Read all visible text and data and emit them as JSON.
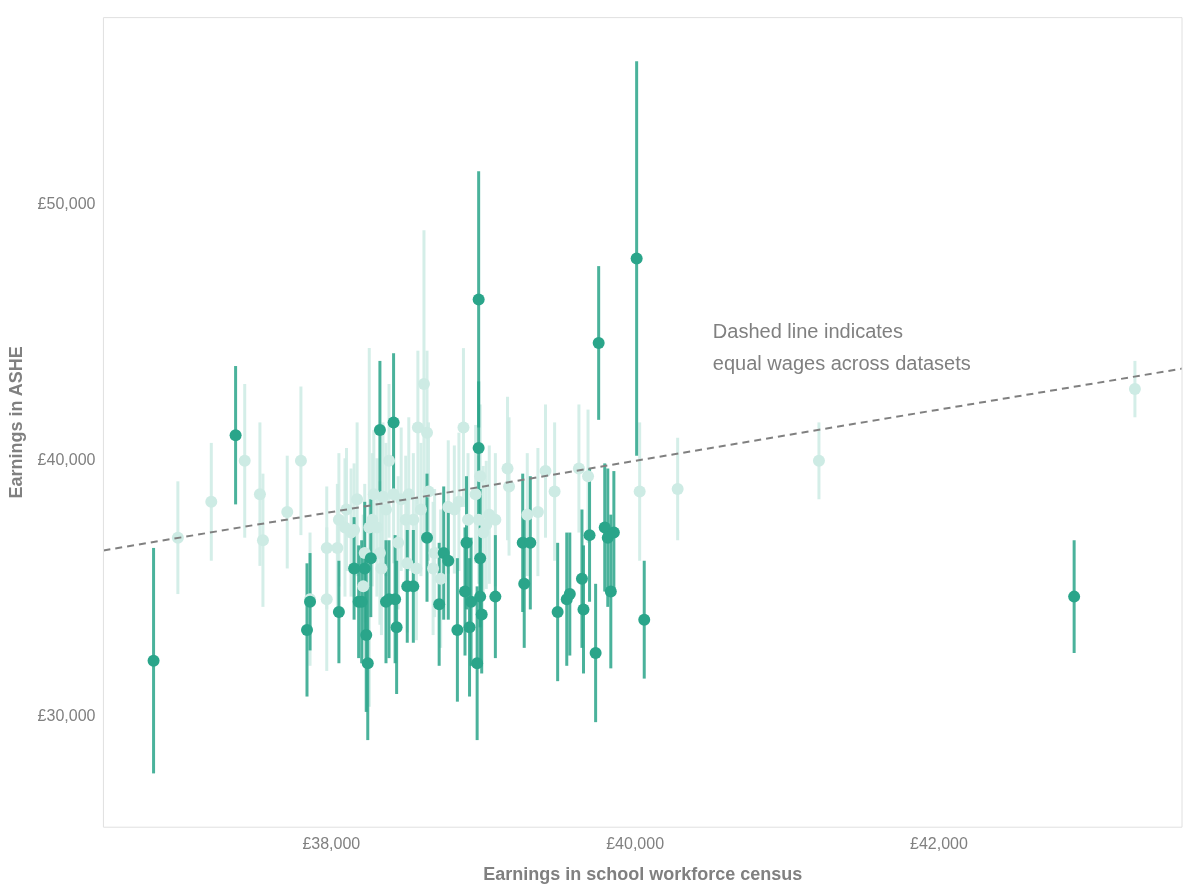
{
  "chart_data": {
    "type": "scatter",
    "xlabel": "Earnings in school workforce census",
    "ylabel": "Earnings in ASHE",
    "xlim": [
      36500,
      43600
    ],
    "ylim": [
      25700,
      57300
    ],
    "xticks": [
      {
        "value": 38000,
        "label": "£38,000"
      },
      {
        "value": 40000,
        "label": "£40,000"
      },
      {
        "value": 42000,
        "label": "£42,000"
      }
    ],
    "yticks": [
      {
        "value": 30000,
        "label": "£30,000"
      },
      {
        "value": 40000,
        "label": "£40,000"
      },
      {
        "value": 50000,
        "label": "£50,000"
      }
    ],
    "grid": false,
    "legend": false,
    "marker": "circle",
    "annotations": [
      "Dashed line indicates\nequal wages across datasets"
    ],
    "series": [
      {
        "color": "#cdebe4",
        "x": [
          36990,
          37210,
          37430,
          37530,
          37550,
          37710,
          37800,
          37860,
          37970,
          37970,
          38040,
          38050,
          38090,
          38100,
          38130,
          38150,
          38170,
          38210,
          38220,
          38250,
          38270,
          38280,
          38300,
          38320,
          38330,
          38340,
          38360,
          38380,
          38410,
          38440,
          38460,
          38490,
          38500,
          38510,
          38540,
          38560,
          38570,
          38590,
          38610,
          38630,
          38640,
          38670,
          38680,
          38720,
          38770,
          38810,
          38840,
          38870,
          38900,
          38950,
          38970,
          38980,
          39000,
          39020,
          39040,
          39080,
          39160,
          39170,
          39290,
          39360,
          39410,
          39470,
          39630,
          39690,
          40030,
          40280,
          41210,
          43290
        ],
        "values": [
          37000,
          38400,
          40000,
          38700,
          36900,
          38000,
          40000,
          34600,
          36600,
          34600,
          36600,
          37700,
          37400,
          38100,
          37200,
          37300,
          38500,
          35100,
          36400,
          37400,
          37700,
          38700,
          37400,
          36400,
          35800,
          38600,
          38100,
          40000,
          38700,
          36800,
          38500,
          37700,
          36000,
          38700,
          37700,
          35800,
          41300,
          38100,
          43000,
          41100,
          38800,
          35800,
          36400,
          35400,
          38200,
          38100,
          38400,
          41300,
          37700,
          38700,
          37700,
          39400,
          37200,
          37500,
          37900,
          37700,
          39700,
          39000,
          37900,
          38000,
          39600,
          38800,
          39700,
          39400,
          38800,
          38900,
          40000,
          42800
        ],
        "errors": [
          2200,
          2300,
          3000,
          2800,
          2600,
          2200,
          2900,
          2600,
          2400,
          2800,
          2500,
          2600,
          2700,
          2400,
          2500,
          2600,
          3000,
          2800,
          2700,
          7000,
          2600,
          2500,
          2700,
          2800,
          2600,
          2900,
          2600,
          3000,
          2700,
          2600,
          2800,
          2500,
          2700,
          3000,
          2600,
          2800,
          3000,
          2600,
          6000,
          3200,
          2700,
          2600,
          2500,
          2700,
          2600,
          2500,
          2700,
          3100,
          2600,
          2700,
          2500,
          2800,
          2600,
          2500,
          2700,
          2600,
          2800,
          2700,
          2400,
          2500,
          2600,
          2700,
          2500,
          2600,
          2700,
          2000,
          1500,
          1100
        ]
      },
      {
        "color": "#2aa58a",
        "x": [
          36830,
          37370,
          37840,
          37860,
          38050,
          38150,
          38180,
          38200,
          38220,
          38230,
          38240,
          38260,
          38320,
          38360,
          38380,
          38410,
          38420,
          38430,
          38500,
          38540,
          38630,
          38710,
          38740,
          38770,
          38830,
          38880,
          38890,
          38910,
          38920,
          38960,
          38970,
          38970,
          38980,
          38980,
          38990,
          39080,
          39260,
          39270,
          39310,
          39490,
          39550,
          39570,
          39650,
          39660,
          39700,
          39740,
          39760,
          39800,
          39820,
          39840,
          39860,
          40010,
          40060,
          42890
        ],
        "values": [
          32200,
          41000,
          33400,
          34500,
          34100,
          35800,
          34500,
          34500,
          35800,
          33200,
          32100,
          36200,
          41200,
          34500,
          34600,
          41500,
          34600,
          33500,
          35100,
          35100,
          37000,
          34400,
          36400,
          36100,
          33400,
          34900,
          36800,
          33500,
          34500,
          32100,
          46300,
          40500,
          36200,
          34700,
          34000,
          34700,
          36800,
          35200,
          36800,
          34100,
          34600,
          34800,
          35400,
          34200,
          37100,
          32500,
          44600,
          37400,
          37000,
          34900,
          37200,
          47900,
          33800,
          34700
        ],
        "errors": [
          4400,
          2700,
          2600,
          1900,
          2000,
          2000,
          2200,
          2400,
          2600,
          3000,
          3000,
          2300,
          2700,
          2400,
          2300,
          2700,
          2500,
          2600,
          2200,
          2200,
          2500,
          2400,
          2600,
          2300,
          2800,
          2500,
          2600,
          2700,
          2500,
          3000,
          5000,
          2600,
          2700,
          2500,
          2300,
          2400,
          2700,
          2500,
          2600,
          2700,
          2600,
          2400,
          2700,
          2500,
          2600,
          2700,
          3000,
          2500,
          2700,
          3000,
          2400,
          7700,
          2300,
          2200
        ]
      },
      {
        "type": "line",
        "color": "#808080",
        "line_style": "dashed",
        "marker": "none",
        "x": [
          36500,
          43600
        ],
        "values": [
          36500,
          43600
        ]
      }
    ]
  }
}
